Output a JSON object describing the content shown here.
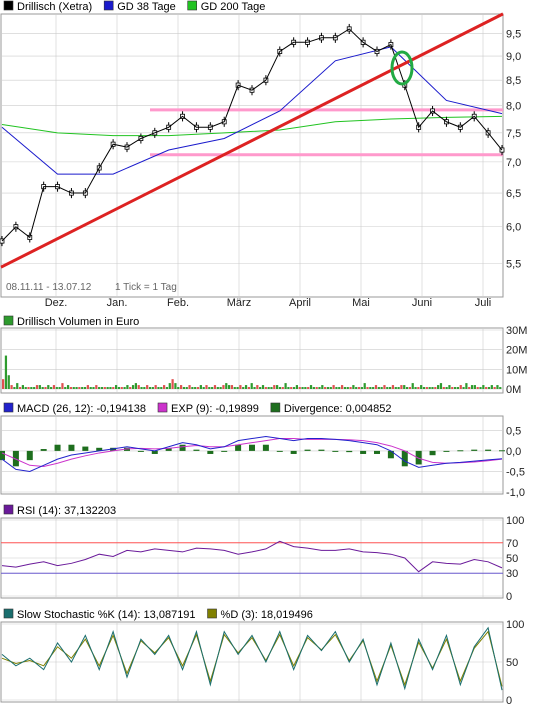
{
  "colors": {
    "price": "#000000",
    "gd38": "#1a1acc",
    "gd200": "#21c321",
    "trend_line": "#dd2222",
    "support_band": "#ff99cc",
    "volume_up": "#2e9b2e",
    "volume_down": "#e05050",
    "macd": "#2222cc",
    "macd_exp": "#cc33cc",
    "divergence": "#1e6e1e",
    "rsi": "#6a1a9a",
    "rsi_overbought_fill": "#ff5555",
    "rsi_oversold_fill": "#6a5acd",
    "sto_k": "#1a6e6e",
    "sto_d": "#808000",
    "grid": "#cccccc",
    "panel_border": "#999999",
    "highlight_circle": "#22aa44"
  },
  "price_panel": {
    "legend": [
      {
        "label": "Drillisch (Xetra)",
        "swatch": "price"
      },
      {
        "label": "GD 38 Tage",
        "swatch": "gd38"
      },
      {
        "label": "GD 200 Tage",
        "swatch": "gd200"
      }
    ],
    "date_range": "08.11.11 - 13.07.12",
    "tick_note": "1 Tick = 1 Tag"
  },
  "volume_panel": {
    "legend": [
      {
        "label": "Drillisch Volumen in Euro",
        "swatch": "volume_up"
      }
    ]
  },
  "macd_panel": {
    "legend": [
      {
        "label": "MACD (26, 12): -0,194138",
        "swatch": "macd"
      },
      {
        "label": "EXP (9): -0,19899",
        "swatch": "macd_exp"
      },
      {
        "label": "Divergence: 0,004852",
        "swatch": "divergence"
      }
    ]
  },
  "rsi_panel": {
    "legend": [
      {
        "label": "RSI (14): 37,132203",
        "swatch": "rsi"
      }
    ]
  },
  "sto_panel": {
    "legend": [
      {
        "label": "Slow Stochastic %K (14): 13,087191",
        "swatch": "sto_k"
      },
      {
        "label": "%D (3): 18,019496",
        "swatch": "sto_d"
      }
    ]
  },
  "chart_data": [
    {
      "type": "line",
      "title": "Drillisch (Xetra)",
      "x_month_labels": [
        "Dez.",
        "Jan.",
        "Feb.",
        "März",
        "April",
        "Mai",
        "Juni",
        "Juli"
      ],
      "y_ticks": [
        "9,5",
        "9,0",
        "8,5",
        "8,0",
        "7,5",
        "7,0",
        "6,5",
        "6,0",
        "5,5"
      ],
      "ylim": [
        5.35,
        9.9
      ],
      "log_scale": true,
      "grid": true,
      "series": [
        {
          "name": "Drillisch (Xetra)",
          "x": [
            "08.11.11",
            "15.11.11",
            "22.11.11",
            "29.11.11",
            "06.12.11",
            "13.12.11",
            "20.12.11",
            "27.12.11",
            "03.01.12",
            "10.01.12",
            "17.01.12",
            "24.01.12",
            "31.01.12",
            "07.02.12",
            "14.02.12",
            "21.02.12",
            "28.02.12",
            "06.03.12",
            "13.03.12",
            "20.03.12",
            "27.03.12",
            "03.04.12",
            "10.04.12",
            "17.04.12",
            "24.04.12",
            "01.05.12",
            "08.05.12",
            "15.05.12",
            "22.05.12",
            "29.05.12",
            "05.06.12",
            "12.06.12",
            "19.06.12",
            "26.06.12",
            "03.07.12",
            "10.07.12",
            "13.07.12"
          ],
          "values": [
            5.8,
            6.0,
            5.85,
            6.6,
            6.6,
            6.5,
            6.5,
            6.9,
            7.3,
            7.25,
            7.4,
            7.5,
            7.6,
            7.8,
            7.6,
            7.6,
            7.7,
            8.4,
            8.3,
            8.5,
            9.1,
            9.3,
            9.3,
            9.4,
            9.4,
            9.6,
            9.3,
            9.1,
            9.25,
            8.4,
            7.6,
            7.9,
            7.7,
            7.6,
            7.8,
            7.5,
            7.2
          ]
        },
        {
          "name": "GD 38 Tage",
          "x": [
            "08.11.11",
            "08.12.11",
            "08.01.12",
            "08.02.12",
            "08.03.12",
            "08.04.12",
            "08.05.12",
            "08.06.12",
            "08.07.12",
            "13.07.12"
          ],
          "values": [
            7.6,
            6.8,
            6.8,
            7.2,
            7.4,
            7.9,
            8.9,
            9.2,
            8.1,
            7.85
          ]
        },
        {
          "name": "GD 200 Tage",
          "x": [
            "08.11.11",
            "08.12.11",
            "08.01.12",
            "08.02.12",
            "08.03.12",
            "08.04.12",
            "08.05.12",
            "08.06.12",
            "08.07.12",
            "13.07.12"
          ],
          "values": [
            7.65,
            7.5,
            7.45,
            7.45,
            7.5,
            7.55,
            7.7,
            7.75,
            7.78,
            7.8
          ]
        }
      ]
    },
    {
      "type": "bar",
      "title": "Drillisch Volumen in Euro",
      "y_ticks": [
        "30M",
        "20M",
        "10M",
        "0M"
      ],
      "ylim": [
        0,
        30
      ],
      "grid": true,
      "series": [
        {
          "name": "Drillisch Volumen in Euro",
          "values": [
            5,
            17,
            7,
            2,
            1,
            3,
            1,
            2,
            1,
            1,
            1,
            1,
            2,
            2,
            1,
            1,
            2,
            1,
            2,
            1,
            1,
            3,
            1,
            2,
            1,
            1,
            1,
            1,
            1,
            1,
            2,
            1,
            1,
            2,
            1,
            1,
            1,
            1,
            1,
            1,
            2,
            1,
            1,
            1,
            2,
            1,
            2,
            3,
            2,
            1,
            1,
            2,
            1,
            1,
            2,
            1,
            1,
            2,
            1,
            3,
            5,
            3,
            1,
            2,
            1,
            1,
            2,
            1,
            1,
            1,
            2,
            1,
            2,
            1,
            1,
            2,
            1,
            1,
            2,
            3,
            2,
            2,
            1,
            1,
            2,
            1,
            2,
            1,
            3,
            1,
            2,
            1,
            2,
            1,
            1,
            1,
            2,
            2,
            1,
            1,
            3,
            1,
            1,
            1,
            2,
            1,
            1,
            1,
            1,
            2,
            1,
            1,
            1,
            2,
            1,
            1,
            1,
            2,
            1,
            1,
            2,
            1,
            1,
            1,
            2,
            1,
            1,
            1,
            3,
            1,
            1,
            1,
            2,
            1,
            1,
            2,
            1,
            1,
            2,
            1,
            1,
            2,
            2,
            1,
            1,
            3,
            1,
            1,
            2,
            1,
            1,
            1,
            1,
            1,
            2,
            3,
            1,
            1,
            2,
            1,
            1,
            1,
            2,
            1,
            3,
            1,
            2,
            2,
            1,
            1,
            2,
            1,
            1,
            2,
            1,
            2,
            1
          ]
        }
      ]
    },
    {
      "type": "line",
      "title": "MACD",
      "y_ticks": [
        "0,5",
        "0,0",
        "-0,5",
        "-1,0"
      ],
      "ylim": [
        -1.0,
        0.8
      ],
      "grid": true,
      "series": [
        {
          "name": "MACD (26, 12)",
          "values": [
            -0.2,
            -0.45,
            -0.5,
            -0.35,
            -0.2,
            -0.1,
            -0.05,
            0.0,
            0.05,
            0.1,
            0.05,
            0.0,
            0.1,
            0.2,
            0.15,
            0.05,
            0.1,
            0.25,
            0.3,
            0.35,
            0.3,
            0.25,
            0.3,
            0.3,
            0.28,
            0.25,
            0.2,
            0.15,
            0.0,
            -0.25,
            -0.4,
            -0.35,
            -0.3,
            -0.28,
            -0.25,
            -0.22,
            -0.19
          ]
        },
        {
          "name": "EXP (9)",
          "values": [
            -0.05,
            -0.2,
            -0.35,
            -0.38,
            -0.3,
            -0.2,
            -0.12,
            -0.05,
            0.0,
            0.05,
            0.06,
            0.05,
            0.06,
            0.1,
            0.13,
            0.1,
            0.1,
            0.15,
            0.2,
            0.25,
            0.3,
            0.3,
            0.28,
            0.28,
            0.28,
            0.27,
            0.25,
            0.2,
            0.12,
            0.0,
            -0.18,
            -0.28,
            -0.3,
            -0.29,
            -0.27,
            -0.24,
            -0.2
          ]
        }
      ]
    },
    {
      "type": "line",
      "title": "RSI (14)",
      "y_ticks": [
        "100",
        "70",
        "50",
        "30",
        "0"
      ],
      "ylim": [
        0,
        100
      ],
      "reference_lines": [
        70,
        30
      ],
      "grid": true,
      "series": [
        {
          "name": "RSI (14)",
          "values": [
            40,
            38,
            42,
            45,
            40,
            43,
            48,
            55,
            52,
            60,
            58,
            62,
            60,
            58,
            63,
            62,
            60,
            55,
            58,
            62,
            72,
            65,
            63,
            60,
            60,
            62,
            58,
            57,
            55,
            50,
            32,
            45,
            43,
            42,
            48,
            45,
            37
          ]
        }
      ]
    },
    {
      "type": "line",
      "title": "Slow Stochastic",
      "y_ticks": [
        "100",
        "50",
        "0"
      ],
      "ylim": [
        0,
        100
      ],
      "grid": true,
      "series": [
        {
          "name": "Slow Stochastic %K (14)",
          "values": [
            60,
            45,
            55,
            40,
            75,
            50,
            85,
            40,
            90,
            30,
            80,
            60,
            85,
            40,
            90,
            20,
            90,
            60,
            85,
            50,
            90,
            40,
            85,
            65,
            90,
            50,
            80,
            20,
            75,
            15,
            80,
            40,
            85,
            20,
            70,
            95,
            13
          ]
        },
        {
          "name": "%D (3)",
          "values": [
            55,
            48,
            52,
            45,
            70,
            55,
            80,
            45,
            85,
            35,
            78,
            62,
            82,
            45,
            86,
            25,
            86,
            62,
            82,
            52,
            86,
            45,
            82,
            66,
            86,
            52,
            78,
            25,
            72,
            20,
            76,
            42,
            80,
            25,
            68,
            90,
            18
          ]
        }
      ]
    }
  ]
}
